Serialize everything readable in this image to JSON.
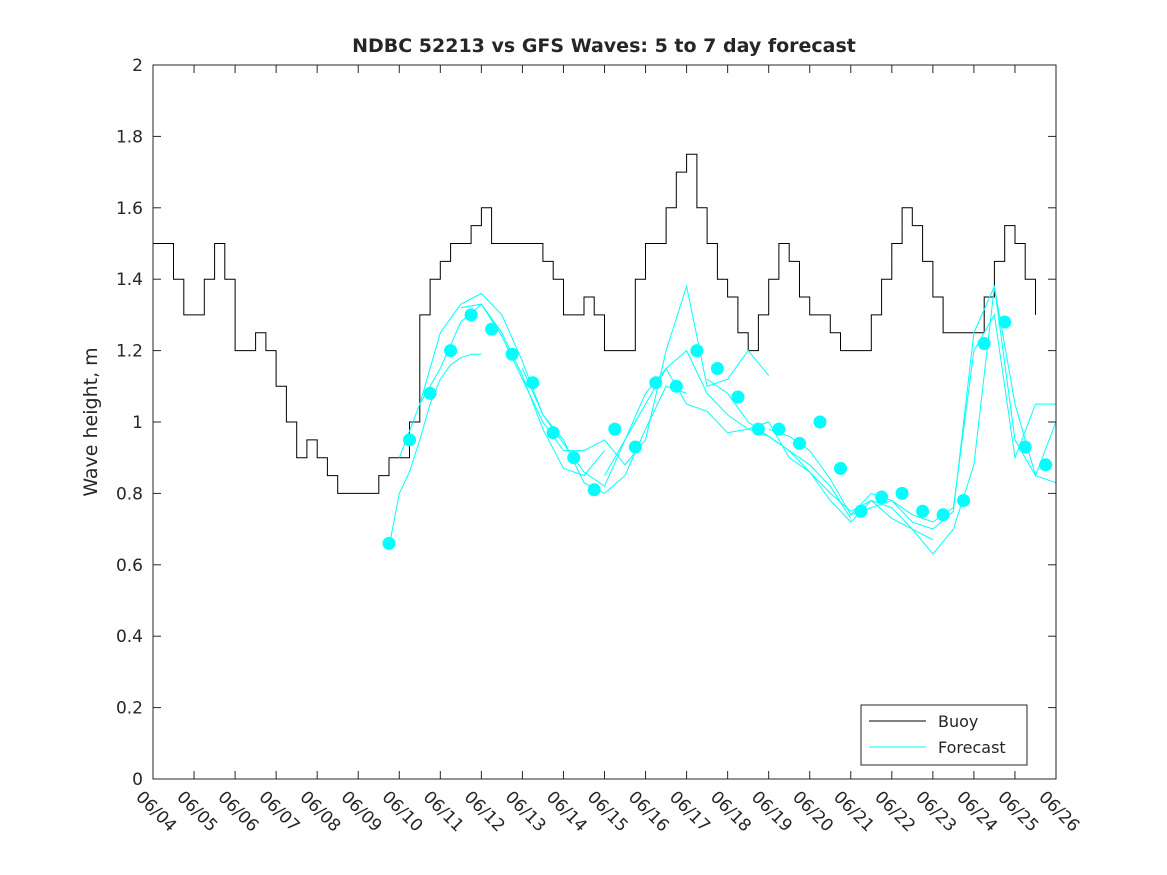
{
  "chart_data": {
    "type": "line",
    "title": "NDBC 52213 vs GFS Waves: 5 to 7 day forecast",
    "xlabel": "",
    "ylabel": "Wave height, m",
    "xlim": [
      "06/04",
      "06/26"
    ],
    "ylim": [
      0,
      2
    ],
    "x_tick_labels": [
      "06/04",
      "06/05",
      "06/06",
      "06/07",
      "06/08",
      "06/09",
      "06/10",
      "06/11",
      "06/12",
      "06/13",
      "06/14",
      "06/15",
      "06/16",
      "06/17",
      "06/18",
      "06/19",
      "06/20",
      "06/21",
      "06/22",
      "06/23",
      "06/24",
      "06/25",
      "06/26"
    ],
    "y_tick_labels": [
      "0",
      "0.2",
      "0.4",
      "0.6",
      "0.8",
      "1",
      "1.2",
      "1.4",
      "1.6",
      "1.8",
      "2"
    ],
    "grid": false,
    "legend": {
      "position": "bottom-right",
      "entries": [
        "Buoy",
        "Forecast"
      ]
    },
    "colors": {
      "buoy": "#000000",
      "forecast": "#00ffff",
      "axis": "#262626"
    },
    "buoy": {
      "name": "Buoy",
      "times": [
        "06/04 00:00",
        "06/04 06:00",
        "06/04 12:00",
        "06/04 18:00",
        "06/05 00:00",
        "06/05 06:00",
        "06/05 12:00",
        "06/05 18:00",
        "06/06 00:00",
        "06/06 06:00",
        "06/06 12:00",
        "06/06 18:00",
        "06/07 00:00",
        "06/07 06:00",
        "06/07 12:00",
        "06/07 18:00",
        "06/08 00:00",
        "06/08 06:00",
        "06/08 12:00",
        "06/08 18:00",
        "06/09 00:00",
        "06/09 06:00",
        "06/09 12:00",
        "06/09 18:00",
        "06/10 00:00",
        "06/10 06:00",
        "06/10 12:00",
        "06/10 18:00",
        "06/11 00:00",
        "06/11 06:00",
        "06/11 12:00",
        "06/11 18:00",
        "06/12 00:00",
        "06/12 06:00",
        "06/12 12:00",
        "06/12 18:00",
        "06/13 00:00",
        "06/13 06:00",
        "06/13 12:00",
        "06/13 18:00",
        "06/14 00:00",
        "06/14 06:00",
        "06/14 12:00",
        "06/14 18:00",
        "06/15 00:00",
        "06/15 06:00",
        "06/15 12:00",
        "06/15 18:00",
        "06/16 00:00",
        "06/16 06:00",
        "06/16 12:00",
        "06/16 18:00",
        "06/17 00:00",
        "06/17 06:00",
        "06/17 12:00",
        "06/17 18:00",
        "06/18 00:00",
        "06/18 06:00",
        "06/18 12:00",
        "06/18 18:00",
        "06/19 00:00",
        "06/19 06:00",
        "06/19 12:00",
        "06/19 18:00",
        "06/20 00:00",
        "06/20 06:00",
        "06/20 12:00",
        "06/20 18:00",
        "06/21 00:00",
        "06/21 06:00",
        "06/21 12:00",
        "06/21 18:00",
        "06/22 00:00",
        "06/22 06:00",
        "06/22 12:00",
        "06/22 18:00",
        "06/23 00:00",
        "06/23 06:00",
        "06/23 12:00",
        "06/23 18:00",
        "06/24 00:00",
        "06/24 06:00",
        "06/24 12:00",
        "06/24 18:00",
        "06/25 00:00",
        "06/25 06:00",
        "06/25 12:00"
      ],
      "values": [
        1.5,
        1.5,
        1.4,
        1.3,
        1.3,
        1.4,
        1.5,
        1.4,
        1.2,
        1.2,
        1.25,
        1.2,
        1.1,
        1.0,
        0.9,
        0.95,
        0.9,
        0.85,
        0.8,
        0.8,
        0.8,
        0.8,
        0.85,
        0.9,
        0.9,
        1.0,
        1.3,
        1.4,
        1.45,
        1.5,
        1.5,
        1.55,
        1.6,
        1.5,
        1.5,
        1.5,
        1.5,
        1.5,
        1.45,
        1.4,
        1.3,
        1.3,
        1.35,
        1.3,
        1.2,
        1.2,
        1.2,
        1.4,
        1.5,
        1.5,
        1.6,
        1.7,
        1.75,
        1.6,
        1.5,
        1.4,
        1.35,
        1.25,
        1.2,
        1.3,
        1.4,
        1.5,
        1.45,
        1.35,
        1.3,
        1.3,
        1.25,
        1.2,
        1.2,
        1.2,
        1.3,
        1.4,
        1.5,
        1.6,
        1.55,
        1.45,
        1.35,
        1.25,
        1.25,
        1.25,
        1.25,
        1.35,
        1.45,
        1.55,
        1.5,
        1.4,
        1.3
      ]
    },
    "forecast_series": [
      {
        "name": "Forecast",
        "times": [
          "06/09 18:00",
          "06/10 00:00",
          "06/10 06:00",
          "06/10 12:00",
          "06/10 18:00",
          "06/11 00:00",
          "06/11 06:00",
          "06/11 12:00",
          "06/11 18:00",
          "06/12 00:00"
        ],
        "values": [
          0.65,
          0.8,
          0.86,
          0.95,
          1.05,
          1.12,
          1.16,
          1.18,
          1.19,
          1.19
        ]
      },
      {
        "name": "Forecast",
        "times": [
          "06/10 00:00",
          "06/10 12:00",
          "06/11 00:00",
          "06/11 12:00",
          "06/12 00:00",
          "06/12 12:00",
          "06/13 00:00",
          "06/13 12:00",
          "06/14 00:00",
          "06/14 12:00",
          "06/15 00:00"
        ],
        "values": [
          0.9,
          1.05,
          1.15,
          1.28,
          1.33,
          1.25,
          1.13,
          0.98,
          0.87,
          0.85,
          0.92
        ]
      },
      {
        "name": "Forecast",
        "times": [
          "06/10 12:00",
          "06/11 00:00",
          "06/11 12:00",
          "06/12 00:00",
          "06/12 12:00",
          "06/13 00:00",
          "06/13 12:00",
          "06/14 00:00",
          "06/14 12:00",
          "06/15 00:00",
          "06/15 12:00",
          "06/16 00:00",
          "06/16 12:00",
          "06/17 00:00"
        ],
        "values": [
          1.05,
          1.25,
          1.33,
          1.36,
          1.3,
          1.17,
          1.02,
          0.95,
          0.83,
          0.8,
          0.85,
          0.98,
          1.1,
          1.08
        ]
      },
      {
        "name": "Forecast",
        "times": [
          "06/11 12:00",
          "06/12 00:00",
          "06/12 12:00",
          "06/13 00:00",
          "06/13 12:00",
          "06/14 00:00",
          "06/14 12:00",
          "06/15 00:00",
          "06/15 12:00",
          "06/16 00:00",
          "06/16 12:00",
          "06/17 00:00",
          "06/17 12:00",
          "06/18 00:00",
          "06/18 12:00",
          "06/19 00:00"
        ],
        "values": [
          1.32,
          1.33,
          1.24,
          1.12,
          1.0,
          0.92,
          0.92,
          0.95,
          0.88,
          0.95,
          1.2,
          1.38,
          1.1,
          1.12,
          1.2,
          1.13
        ]
      },
      {
        "name": "Forecast",
        "times": [
          "06/13 00:00",
          "06/13 12:00",
          "06/14 00:00",
          "06/14 12:00",
          "06/15 00:00",
          "06/15 12:00",
          "06/16 00:00",
          "06/16 12:00",
          "06/17 00:00",
          "06/17 12:00",
          "06/18 00:00",
          "06/18 12:00",
          "06/19 00:00",
          "06/19 12:00",
          "06/20 00:00",
          "06/20 12:00",
          "06/21 00:00"
        ],
        "values": [
          1.15,
          1.02,
          0.94,
          0.86,
          0.82,
          0.95,
          1.08,
          1.15,
          1.2,
          1.08,
          1.02,
          0.98,
          0.96,
          0.92,
          0.88,
          0.82,
          0.73
        ]
      },
      {
        "name": "Forecast",
        "times": [
          "06/15 00:00",
          "06/15 12:00",
          "06/16 00:00",
          "06/16 12:00",
          "06/17 00:00",
          "06/17 12:00",
          "06/18 00:00",
          "06/18 12:00",
          "06/19 00:00",
          "06/19 12:00",
          "06/20 00:00",
          "06/20 12:00",
          "06/21 00:00",
          "06/21 12:00",
          "06/22 00:00",
          "06/22 12:00",
          "06/23 00:00"
        ],
        "values": [
          0.85,
          0.95,
          1.05,
          1.15,
          1.05,
          1.03,
          0.97,
          0.98,
          1.0,
          0.9,
          0.86,
          0.8,
          0.75,
          0.78,
          0.73,
          0.7,
          0.67
        ]
      },
      {
        "name": "Forecast",
        "times": [
          "06/17 12:00",
          "06/18 00:00",
          "06/18 12:00",
          "06/19 00:00",
          "06/19 12:00",
          "06/20 00:00",
          "06/20 12:00",
          "06/21 00:00",
          "06/21 12:00",
          "06/22 00:00",
          "06/22 12:00",
          "06/23 00:00",
          "06/23 12:00",
          "06/24 00:00",
          "06/24 12:00",
          "06/25 00:00",
          "06/25 12:00",
          "06/26 00:00"
        ],
        "values": [
          1.12,
          1.08,
          1.0,
          0.96,
          0.92,
          0.86,
          0.78,
          0.72,
          0.78,
          0.76,
          0.7,
          0.63,
          0.7,
          0.88,
          1.38,
          1.05,
          0.85,
          1.0
        ]
      },
      {
        "name": "Forecast",
        "times": [
          "06/19 00:00",
          "06/19 12:00",
          "06/20 00:00",
          "06/20 12:00",
          "06/21 00:00",
          "06/21 12:00",
          "06/22 00:00",
          "06/22 12:00",
          "06/23 00:00",
          "06/23 12:00",
          "06/24 00:00",
          "06/24 12:00",
          "06/25 00:00",
          "06/25 12:00",
          "06/26 00:00"
        ],
        "values": [
          0.98,
          0.96,
          0.92,
          0.84,
          0.74,
          0.76,
          0.78,
          0.72,
          0.7,
          0.75,
          1.25,
          1.38,
          0.95,
          0.85,
          0.83
        ]
      },
      {
        "name": "Forecast",
        "times": [
          "06/21 00:00",
          "06/21 12:00",
          "06/22 00:00",
          "06/22 12:00",
          "06/23 00:00",
          "06/23 12:00",
          "06/24 00:00",
          "06/24 12:00",
          "06/25 00:00",
          "06/25 12:00",
          "06/26 00:00"
        ],
        "values": [
          0.74,
          0.8,
          0.78,
          0.74,
          0.72,
          0.76,
          1.2,
          1.3,
          0.9,
          1.05,
          1.05
        ]
      }
    ],
    "forecast_markers": {
      "name": "Forecast",
      "times": [
        "06/09 18:00",
        "06/10 06:00",
        "06/10 18:00",
        "06/11 06:00",
        "06/11 18:00",
        "06/12 06:00",
        "06/12 18:00",
        "06/13 06:00",
        "06/13 18:00",
        "06/14 06:00",
        "06/14 18:00",
        "06/15 06:00",
        "06/15 18:00",
        "06/16 06:00",
        "06/16 18:00",
        "06/17 06:00",
        "06/17 18:00",
        "06/18 06:00",
        "06/18 18:00",
        "06/19 06:00",
        "06/19 18:00",
        "06/20 06:00",
        "06/20 18:00",
        "06/21 06:00",
        "06/21 18:00",
        "06/22 06:00",
        "06/22 18:00",
        "06/23 06:00",
        "06/23 18:00",
        "06/24 06:00",
        "06/24 18:00",
        "06/25 06:00",
        "06/25 18:00"
      ],
      "values": [
        0.66,
        0.95,
        1.08,
        1.2,
        1.3,
        1.26,
        1.19,
        1.11,
        0.97,
        0.9,
        0.81,
        0.98,
        0.93,
        1.11,
        1.1,
        1.2,
        1.15,
        1.07,
        0.98,
        0.98,
        0.94,
        1.0,
        0.87,
        0.75,
        0.79,
        0.8,
        0.75,
        0.74,
        0.78,
        1.22,
        1.28,
        0.93,
        0.88
      ]
    }
  }
}
